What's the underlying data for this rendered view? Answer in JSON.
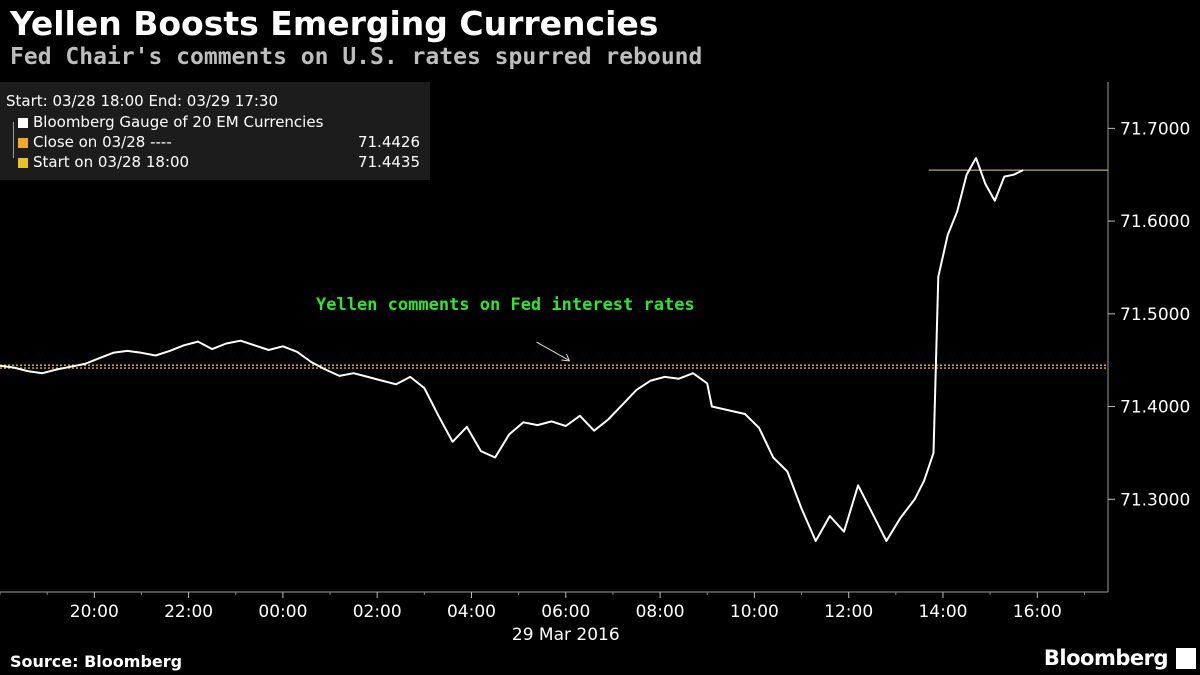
{
  "header": {
    "title": "Yellen Boosts Emerging Currencies",
    "subtitle": "Fed Chair's comments on U.S. rates spurred rebound"
  },
  "legend": {
    "range_label": "Start: 03/28 18:00 End: 03/29 17:30",
    "items": [
      {
        "label": "Bloomberg Gauge of 20 EM Currencies",
        "value": "",
        "color": "#ffffff"
      },
      {
        "label": "Close on 03/28 ----",
        "value": "71.4426",
        "color": "#f5a623"
      },
      {
        "label": "Start on 03/28 18:00",
        "value": "71.4435",
        "color": "#e6c229"
      }
    ]
  },
  "footer": {
    "source": "Source: Bloomberg",
    "brand": "Bloomberg"
  },
  "chart_data": {
    "type": "line",
    "title": "Yellen Boosts Emerging Currencies",
    "subtitle": "Fed Chair's comments on U.S. rates spurred rebound",
    "date_label": "29 Mar 2016",
    "x_unit": "hours since 03/28 18:00",
    "xlim": [
      0,
      23.5
    ],
    "ylim": [
      71.2,
      71.75
    ],
    "y_ticks": [
      71.3,
      71.4,
      71.5,
      71.6,
      71.7
    ],
    "y_tick_labels": [
      "71.3000",
      "71.4000",
      "71.5000",
      "71.6000",
      "71.7000"
    ],
    "x_ticks": [
      2,
      4,
      6,
      8,
      10,
      12,
      14,
      16,
      18,
      20,
      22
    ],
    "x_tick_labels": [
      "20:00",
      "22:00",
      "00:00",
      "02:00",
      "04:00",
      "06:00",
      "08:00",
      "10:00",
      "12:00",
      "14:00",
      "16:00"
    ],
    "reference_lines": [
      {
        "name": "Close on 03/28",
        "value": 71.4426,
        "color": "#f5a623",
        "style": "dotted"
      },
      {
        "name": "Start on 03/28 18:00",
        "value": 71.4435,
        "color": "#e6c229",
        "style": "dotted"
      }
    ],
    "last_value_line": {
      "value": 71.655,
      "from_x": 19.7,
      "color": "#e8d48a"
    },
    "annotation": {
      "text": "Yellen comments on Fed interest rates",
      "color": "#2ee62e",
      "x": 12.1,
      "y": 71.448
    },
    "series": [
      {
        "name": "Bloomberg Gauge of 20 EM Currencies",
        "color": "#ffffff",
        "points": [
          [
            0.0,
            71.444
          ],
          [
            0.3,
            71.442
          ],
          [
            0.6,
            71.438
          ],
          [
            0.9,
            71.436
          ],
          [
            1.2,
            71.44
          ],
          [
            1.5,
            71.443
          ],
          [
            1.8,
            71.446
          ],
          [
            2.1,
            71.452
          ],
          [
            2.4,
            71.458
          ],
          [
            2.7,
            71.46
          ],
          [
            3.0,
            71.458
          ],
          [
            3.3,
            71.455
          ],
          [
            3.6,
            71.46
          ],
          [
            3.9,
            71.466
          ],
          [
            4.2,
            71.47
          ],
          [
            4.5,
            71.462
          ],
          [
            4.8,
            71.468
          ],
          [
            5.1,
            71.471
          ],
          [
            5.4,
            71.466
          ],
          [
            5.7,
            71.461
          ],
          [
            6.0,
            71.465
          ],
          [
            6.3,
            71.459
          ],
          [
            6.6,
            71.448
          ],
          [
            6.9,
            71.44
          ],
          [
            7.2,
            71.433
          ],
          [
            7.5,
            71.436
          ],
          [
            7.8,
            71.432
          ],
          [
            8.1,
            71.428
          ],
          [
            8.4,
            71.424
          ],
          [
            8.7,
            71.432
          ],
          [
            9.0,
            71.42
          ],
          [
            9.3,
            71.39
          ],
          [
            9.6,
            71.362
          ],
          [
            9.9,
            71.378
          ],
          [
            10.2,
            71.352
          ],
          [
            10.5,
            71.345
          ],
          [
            10.8,
            71.37
          ],
          [
            11.1,
            71.383
          ],
          [
            11.4,
            71.38
          ],
          [
            11.7,
            71.384
          ],
          [
            12.0,
            71.379
          ],
          [
            12.3,
            71.39
          ],
          [
            12.6,
            71.374
          ],
          [
            12.9,
            71.386
          ],
          [
            13.2,
            71.402
          ],
          [
            13.5,
            71.418
          ],
          [
            13.8,
            71.428
          ],
          [
            14.1,
            71.432
          ],
          [
            14.4,
            71.43
          ],
          [
            14.7,
            71.436
          ],
          [
            15.0,
            71.425
          ],
          [
            15.1,
            71.4
          ],
          [
            15.8,
            71.392
          ],
          [
            16.1,
            71.377
          ],
          [
            16.4,
            71.345
          ],
          [
            16.7,
            71.33
          ],
          [
            17.0,
            71.29
          ],
          [
            17.3,
            71.255
          ],
          [
            17.6,
            71.282
          ],
          [
            17.9,
            71.265
          ],
          [
            18.2,
            71.315
          ],
          [
            18.5,
            71.285
          ],
          [
            18.8,
            71.255
          ],
          [
            19.1,
            71.28
          ],
          [
            19.4,
            71.3
          ],
          [
            19.6,
            71.32
          ],
          [
            19.8,
            71.35
          ],
          [
            19.9,
            71.54
          ],
          [
            20.1,
            71.585
          ],
          [
            20.3,
            71.61
          ],
          [
            20.5,
            71.65
          ],
          [
            20.7,
            71.668
          ],
          [
            20.9,
            71.64
          ],
          [
            21.1,
            71.622
          ],
          [
            21.3,
            71.648
          ],
          [
            21.5,
            71.65
          ],
          [
            21.7,
            71.655
          ]
        ]
      }
    ]
  }
}
